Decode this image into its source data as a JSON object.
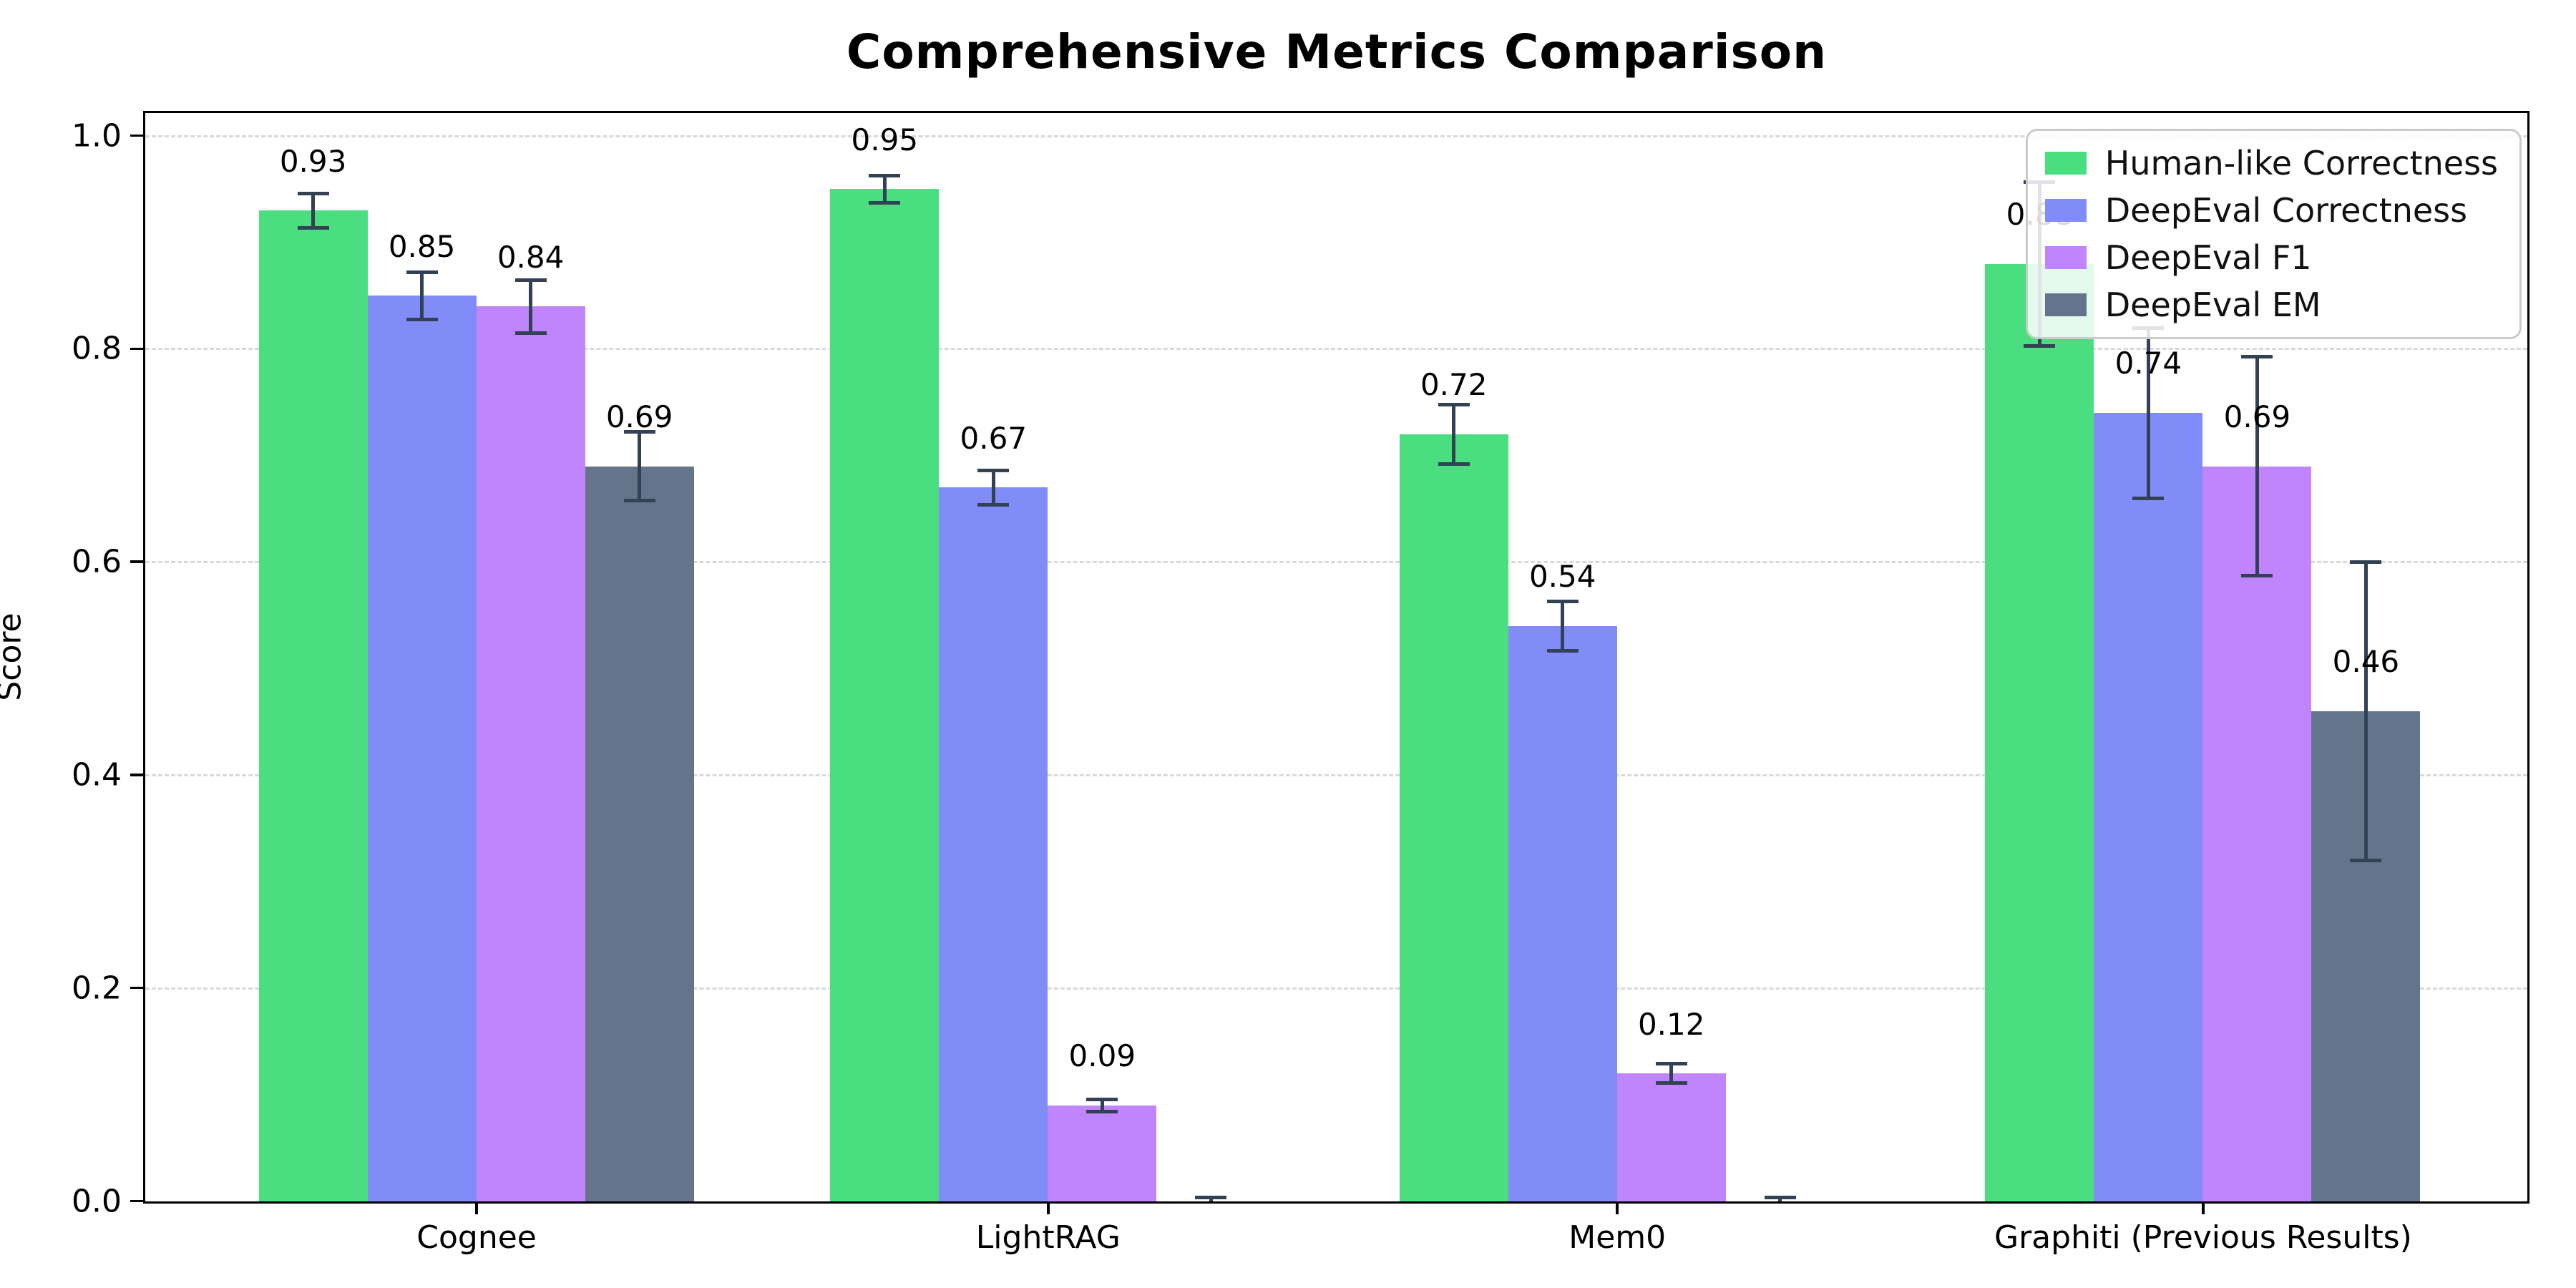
{
  "title": "Comprehensive Metrics Comparison",
  "chart_data": {
    "type": "bar",
    "title": "Comprehensive Metrics Comparison",
    "xlabel": "",
    "ylabel": "Score",
    "categories": [
      "Cognee",
      "LightRAG",
      "Mem0",
      "Graphiti (Previous Results)"
    ],
    "series": [
      {
        "name": "Human-like Correctness",
        "color": "#4ade80",
        "values": [
          0.93,
          0.95,
          0.72,
          0.88
        ],
        "errors": [
          0.016,
          0.013,
          0.028,
          0.077
        ],
        "labels": [
          "0.93",
          "0.95",
          "0.72",
          "0.88"
        ]
      },
      {
        "name": "DeepEval Correctness",
        "color": "#818cf8",
        "values": [
          0.85,
          0.67,
          0.54,
          0.74
        ],
        "errors": [
          0.022,
          0.016,
          0.023,
          0.08
        ],
        "labels": [
          "0.85",
          "0.67",
          "0.54",
          "0.74"
        ]
      },
      {
        "name": "DeepEval F1",
        "color": "#c084fc",
        "values": [
          0.84,
          0.09,
          0.12,
          0.69
        ],
        "errors": [
          0.025,
          0.006,
          0.009,
          0.103
        ],
        "labels": [
          "0.84",
          "0.09",
          "0.12",
          "0.69"
        ]
      },
      {
        "name": "DeepEval EM",
        "color": "#64748b",
        "values": [
          0.69,
          0.0,
          0.0,
          0.46
        ],
        "errors": [
          0.032,
          0.004,
          0.004,
          0.14
        ],
        "labels": [
          "0.69",
          "",
          "",
          "0.46"
        ]
      }
    ],
    "yticks": [
      "0.0",
      "0.2",
      "0.4",
      "0.6",
      "0.8",
      "1.0"
    ],
    "ylim": [
      0.0,
      1.026
    ],
    "grid": "horizontal-dashed",
    "legend_position": "upper-right",
    "colors": {
      "error_bar": "#334155",
      "grid": "#d9d9d9",
      "spine": "#000000",
      "background": "#ffffff"
    }
  }
}
